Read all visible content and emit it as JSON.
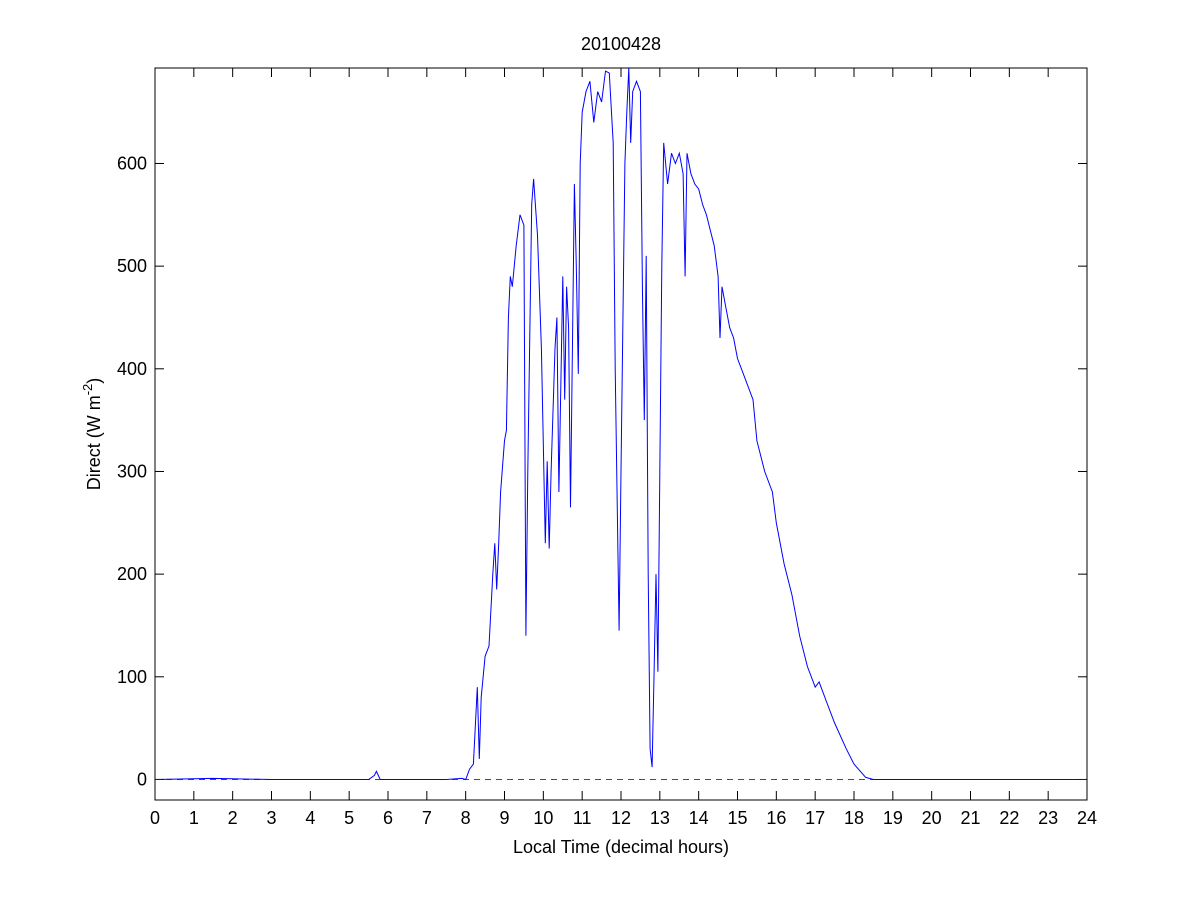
{
  "chart_data": {
    "type": "line",
    "title": "20100428",
    "xlabel": "Local Time (decimal hours)",
    "ylabel": [
      "Direct (W m",
      "-2",
      ")"
    ],
    "x": [
      0,
      1.5,
      3,
      5.5,
      5.65,
      5.7,
      5.8,
      7.5,
      7.9,
      8.0,
      8.1,
      8.2,
      8.3,
      8.35,
      8.4,
      8.5,
      8.6,
      8.7,
      8.75,
      8.8,
      8.85,
      8.9,
      9.0,
      9.05,
      9.1,
      9.15,
      9.2,
      9.3,
      9.4,
      9.5,
      9.55,
      9.6,
      9.7,
      9.75,
      9.85,
      9.95,
      10.05,
      10.1,
      10.15,
      10.2,
      10.3,
      10.35,
      10.4,
      10.5,
      10.55,
      10.6,
      10.65,
      10.7,
      10.8,
      10.85,
      10.9,
      10.95,
      11.0,
      11.1,
      11.2,
      11.3,
      11.4,
      11.5,
      11.6,
      11.7,
      11.8,
      11.85,
      11.95,
      12.0,
      12.1,
      12.15,
      12.2,
      12.25,
      12.3,
      12.4,
      12.5,
      12.55,
      12.6,
      12.65,
      12.7,
      12.75,
      12.8,
      12.85,
      12.9,
      12.95,
      13.05,
      13.1,
      13.2,
      13.3,
      13.4,
      13.5,
      13.6,
      13.65,
      13.7,
      13.8,
      13.9,
      14.0,
      14.1,
      14.2,
      14.3,
      14.4,
      14.5,
      14.55,
      14.6,
      14.7,
      14.8,
      14.9,
      15.0,
      15.2,
      15.4,
      15.5,
      15.7,
      15.9,
      16.0,
      16.2,
      16.4,
      16.6,
      16.8,
      17.0,
      17.1,
      17.3,
      17.5,
      17.8,
      18.0,
      18.3,
      18.5,
      24
    ],
    "series": [
      {
        "color": "#0000ff",
        "values": [
          0,
          1,
          0,
          0,
          4,
          8,
          0,
          0,
          1,
          0,
          10,
          15,
          90,
          20,
          80,
          120,
          130,
          200,
          230,
          185,
          230,
          280,
          330,
          340,
          450,
          490,
          480,
          520,
          550,
          540,
          140,
          300,
          560,
          585,
          530,
          420,
          230,
          310,
          225,
          300,
          420,
          450,
          280,
          490,
          370,
          480,
          440,
          265,
          580,
          500,
          395,
          600,
          650,
          670,
          680,
          640,
          670,
          660,
          690,
          688,
          620,
          400,
          145,
          300,
          600,
          650,
          693,
          620,
          670,
          680,
          670,
          480,
          350,
          510,
          200,
          30,
          12,
          100,
          200,
          105,
          500,
          620,
          580,
          610,
          600,
          610,
          590,
          490,
          610,
          590,
          580,
          575,
          560,
          550,
          535,
          520,
          490,
          430,
          480,
          460,
          440,
          430,
          410,
          390,
          370,
          330,
          300,
          280,
          250,
          210,
          180,
          140,
          110,
          90,
          95,
          75,
          55,
          30,
          15,
          2,
          0,
          0
        ]
      }
    ],
    "hline": 0,
    "hline_color": "#ff0000",
    "xlim": [
      0,
      24
    ],
    "xticks": [
      0,
      1,
      2,
      3,
      4,
      5,
      6,
      7,
      8,
      9,
      10,
      11,
      12,
      13,
      14,
      15,
      16,
      17,
      18,
      19,
      20,
      21,
      22,
      23,
      24
    ],
    "ylim": [
      -20,
      693
    ],
    "yticks": [
      0,
      100,
      200,
      300,
      400,
      500,
      600
    ]
  }
}
